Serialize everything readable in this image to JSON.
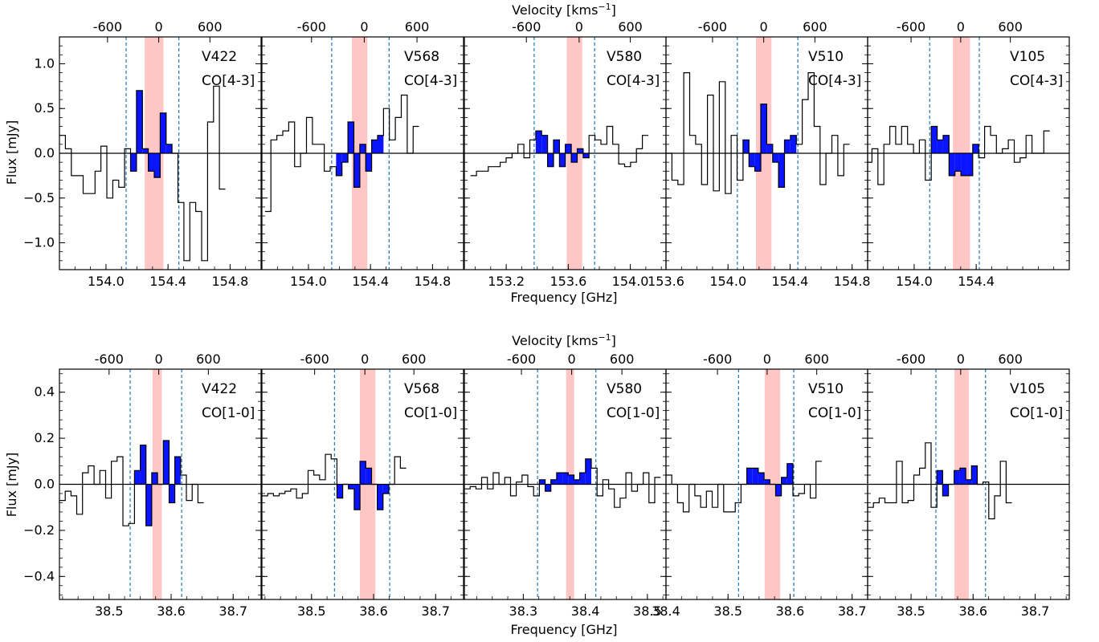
{
  "figure": {
    "velocity_label": "Velocity [kms",
    "velocity_unit_exp": "−1",
    "velocity_label_close": "]",
    "frequency_label": "Frequency [GHz]",
    "flux_label": "Flux [mJy]"
  },
  "colors": {
    "signal_fill": "#0a14ff",
    "highlight_band": "#ffc6c6",
    "dashed_line": "#1f77b4",
    "axis": "#000000"
  },
  "chart_data": [
    {
      "type": "step",
      "row": "top",
      "source": "V422",
      "line": "CO[4-3]",
      "xlim": [
        153.7,
        155.0
      ],
      "ylim": [
        -1.3,
        1.3
      ],
      "xticks": [
        154.0,
        154.4,
        154.8
      ],
      "xtick_labels": [
        "154.0",
        "154.4",
        "154.8"
      ],
      "yticks": [
        -1.0,
        -0.5,
        0.0,
        0.5,
        1.0
      ],
      "ytick_labels": [
        "−1.0",
        "−0.5",
        "0.0",
        "0.5",
        "1.0"
      ],
      "velocity_ticks": [
        "-600",
        "0",
        "600"
      ],
      "velocity_tick_freqs": [
        154.01,
        154.34,
        154.67
      ],
      "highlight": [
        154.25,
        154.37
      ],
      "dashed": [
        154.13,
        154.47
      ],
      "bin_start": 153.7,
      "bin_width": 0.0382,
      "values": [
        0.2,
        0.05,
        -0.25,
        -0.25,
        -0.45,
        -0.45,
        -0.2,
        0.08,
        -0.5,
        -0.3,
        -0.38,
        0.05,
        -0.2,
        0.7,
        0.05,
        -0.2,
        -0.27,
        0.45,
        0.1,
        0.0,
        -0.55,
        -1.2,
        -0.55,
        -0.65,
        -1.2,
        0.35,
        0.75,
        -0.4
      ]
    },
    {
      "type": "step",
      "row": "top",
      "source": "V568",
      "line": "CO[4-3]",
      "xlim": [
        153.7,
        155.0
      ],
      "ylim": [
        -1.3,
        1.3
      ],
      "xticks": [
        154.0,
        154.4,
        154.8
      ],
      "xtick_labels": [
        "154.0",
        "154.4",
        "154.8"
      ],
      "yticks": [
        -1.0,
        -0.5,
        0.0,
        0.5,
        1.0
      ],
      "ytick_labels": [],
      "velocity_ticks": [
        "-600",
        "0",
        "600"
      ],
      "velocity_tick_freqs": [
        154.02,
        154.36,
        154.7
      ],
      "highlight": [
        154.28,
        154.38
      ],
      "dashed": [
        154.15,
        154.52
      ],
      "bin_start": 153.72,
      "bin_width": 0.0382,
      "values": [
        -0.65,
        0.15,
        0.2,
        0.25,
        0.35,
        -0.15,
        0.0,
        0.4,
        0.1,
        0.1,
        -0.2,
        -0.15,
        -0.25,
        -0.1,
        0.35,
        -0.38,
        0.1,
        -0.2,
        0.15,
        0.2,
        0.5,
        0.15,
        0.4,
        0.65,
        0.0,
        0.3
      ]
    },
    {
      "type": "step",
      "row": "top",
      "source": "V580",
      "line": "CO[4-3]",
      "xlim": [
        152.93,
        154.23
      ],
      "ylim": [
        -1.3,
        1.3
      ],
      "xticks": [
        153.2,
        153.6,
        154.0
      ],
      "xtick_labels": [
        "153.2",
        "153.6",
        "154.0"
      ],
      "yticks": [
        -1.0,
        -0.5,
        0.0,
        0.5,
        1.0
      ],
      "ytick_labels": [],
      "velocity_ticks": [
        "-600",
        "0",
        "600"
      ],
      "velocity_tick_freqs": [
        153.33,
        153.67,
        154.0
      ],
      "highlight": [
        153.59,
        153.69
      ],
      "dashed": [
        153.38,
        153.77
      ],
      "bin_start": 152.97,
      "bin_width": 0.0382,
      "values": [
        -0.25,
        -0.2,
        -0.2,
        -0.15,
        -0.15,
        -0.1,
        -0.05,
        0.0,
        0.1,
        -0.05,
        0.15,
        0.25,
        0.2,
        -0.15,
        0.15,
        -0.15,
        0.1,
        -0.1,
        0.05,
        -0.05,
        0.2,
        0.15,
        0.1,
        0.3,
        0.1,
        -0.12,
        -0.15,
        -0.1,
        0.05,
        0.2
      ]
    },
    {
      "type": "step",
      "row": "top",
      "source": "V510",
      "line": "CO[4-3]",
      "xlim": [
        153.6,
        154.9
      ],
      "ylim": [
        -1.3,
        1.3
      ],
      "xticks": [
        153.6,
        154.0,
        154.4,
        154.8
      ],
      "xtick_labels": [
        "153.6",
        "154.0",
        "154.4",
        "154.8"
      ],
      "yticks": [
        -1.0,
        -0.5,
        0.0,
        0.5,
        1.0
      ],
      "ytick_labels": [],
      "velocity_ticks": [
        "-600",
        "0",
        "600"
      ],
      "velocity_tick_freqs": [
        153.9,
        154.23,
        154.56
      ],
      "highlight": [
        154.18,
        154.28
      ],
      "dashed": [
        154.06,
        154.45
      ],
      "bin_start": 153.6,
      "bin_width": 0.0382,
      "values": [
        0.0,
        -0.3,
        -0.35,
        0.9,
        0.2,
        0.1,
        -0.35,
        0.65,
        -0.42,
        0.8,
        -0.45,
        0.2,
        -0.3,
        0.15,
        -0.15,
        -0.2,
        0.55,
        0.1,
        -0.1,
        -0.38,
        0.15,
        0.2,
        0.1,
        0.6,
        0.9,
        0.3,
        -0.35,
        0.0,
        0.2,
        -0.25,
        0.1
      ]
    },
    {
      "type": "step",
      "row": "top",
      "source": "V105",
      "line": "CO[4-3]",
      "xlim": [
        153.7,
        155.0
      ],
      "ylim": [
        -1.3,
        1.3
      ],
      "xticks": [
        154.0,
        154.4
      ],
      "xtick_labels": [
        "154.0",
        "154.4"
      ],
      "yticks": [
        -1.0,
        -0.5,
        0.0,
        0.5,
        1.0
      ],
      "ytick_labels": [],
      "velocity_ticks": [
        "-600",
        "0",
        "600"
      ],
      "velocity_tick_freqs": [
        153.98,
        154.3,
        154.62
      ],
      "highlight": [
        154.25,
        154.36
      ],
      "dashed": [
        154.1,
        154.42
      ],
      "bin_start": 153.69,
      "bin_width": 0.0382,
      "values": [
        -0.1,
        0.05,
        -0.35,
        0.1,
        0.3,
        0.1,
        0.3,
        0.1,
        0.0,
        0.15,
        -0.3,
        0.3,
        0.15,
        0.2,
        -0.25,
        -0.2,
        -0.25,
        -0.25,
        0.1,
        -0.05,
        0.3,
        0.2,
        0.0,
        0.05,
        0.15,
        -0.1,
        -0.05,
        0.2,
        0.0,
        0.0,
        0.25
      ]
    },
    {
      "type": "step",
      "row": "bottom",
      "source": "V422",
      "line": "CO[1-0]",
      "xlim": [
        38.42,
        38.745
      ],
      "ylim": [
        -0.5,
        0.5
      ],
      "xticks": [
        38.5,
        38.6,
        38.7
      ],
      "xtick_labels": [
        "38.5",
        "38.6",
        "38.7"
      ],
      "yticks": [
        -0.4,
        -0.2,
        0.0,
        0.2,
        0.4
      ],
      "ytick_labels": [
        "−0.4",
        "−0.2",
        "0.0",
        "0.2",
        "0.4"
      ],
      "velocity_ticks": [
        "-600",
        "0",
        "600"
      ],
      "velocity_tick_freqs": [
        38.5,
        38.58,
        38.66
      ],
      "highlight": [
        38.57,
        38.585
      ],
      "dashed": [
        38.534,
        38.617
      ],
      "bin_start": 38.42,
      "bin_width": 0.0093,
      "values": [
        -0.07,
        -0.03,
        -0.05,
        -0.13,
        0.05,
        0.08,
        0.0,
        0.06,
        -0.06,
        0.1,
        0.12,
        -0.18,
        -0.17,
        0.06,
        0.17,
        -0.18,
        0.05,
        0.0,
        0.19,
        -0.08,
        0.12,
        0.04,
        -0.07,
        0.0,
        -0.08
      ]
    },
    {
      "type": "step",
      "row": "bottom",
      "source": "V568",
      "line": "CO[1-0]",
      "xlim": [
        38.42,
        38.745
      ],
      "ylim": [
        -0.5,
        0.5
      ],
      "xticks": [
        38.5,
        38.6,
        38.7
      ],
      "xtick_labels": [
        "38.5",
        "38.6",
        "38.7"
      ],
      "yticks": [
        -0.4,
        -0.2,
        0.0,
        0.2,
        0.4
      ],
      "ytick_labels": [],
      "velocity_ticks": [
        "-600",
        "0",
        "600"
      ],
      "velocity_tick_freqs": [
        38.505,
        38.586,
        38.665
      ],
      "highlight": [
        38.578,
        38.603
      ],
      "dashed": [
        38.537,
        38.626
      ],
      "bin_start": 38.42,
      "bin_width": 0.0093,
      "values": [
        -0.05,
        -0.04,
        -0.05,
        -0.04,
        -0.03,
        -0.02,
        -0.06,
        -0.04,
        0.06,
        0.04,
        0.02,
        0.13,
        0.11,
        -0.06,
        0.0,
        -0.02,
        -0.11,
        0.1,
        0.07,
        0.0,
        -0.11,
        -0.04,
        0.0,
        0.12,
        0.07
      ]
    },
    {
      "type": "step",
      "row": "bottom",
      "source": "V580",
      "line": "CO[1-0]",
      "xlim": [
        38.205,
        38.53
      ],
      "ylim": [
        -0.5,
        0.5
      ],
      "xticks": [
        38.3,
        38.4,
        38.5
      ],
      "xtick_labels": [
        "38.3",
        "38.4",
        "38.5"
      ],
      "yticks": [
        -0.4,
        -0.2,
        0.0,
        0.2,
        0.4
      ],
      "ytick_labels": [],
      "velocity_ticks": [
        "-600",
        "0",
        "600"
      ],
      "velocity_tick_freqs": [
        38.297,
        38.378,
        38.459
      ],
      "highlight": [
        38.369,
        38.382
      ],
      "dashed": [
        38.323,
        38.417
      ],
      "bin_start": 38.205,
      "bin_width": 0.0093,
      "values": [
        -0.02,
        -0.01,
        -0.02,
        0.03,
        -0.02,
        0.05,
        0.0,
        0.03,
        -0.05,
        0.01,
        0.04,
        -0.01,
        -0.05,
        0.02,
        -0.03,
        0.02,
        0.05,
        0.05,
        0.04,
        0.02,
        0.05,
        0.11,
        0.07,
        -0.05,
        0.02,
        -0.02,
        -0.1,
        -0.06,
        0.05,
        -0.03,
        0.0,
        0.05,
        -0.08,
        0.03
      ]
    },
    {
      "type": "step",
      "row": "bottom",
      "source": "V510",
      "line": "CO[1-0]",
      "xlim": [
        38.4,
        38.725
      ],
      "ylim": [
        -0.5,
        0.5
      ],
      "xticks": [
        38.4,
        38.5,
        38.6,
        38.7
      ],
      "xtick_labels": [
        "38.4",
        "38.5",
        "38.6",
        "38.7"
      ],
      "yticks": [
        -0.4,
        -0.2,
        0.0,
        0.2,
        0.4
      ],
      "ytick_labels": [],
      "velocity_ticks": [
        "-600",
        "0",
        "600"
      ],
      "velocity_tick_freqs": [
        38.483,
        38.563,
        38.643
      ],
      "highlight": [
        38.559,
        38.584
      ],
      "dashed": [
        38.517,
        38.606
      ],
      "bin_start": 38.4,
      "bin_width": 0.0093,
      "values": [
        0.04,
        0.0,
        -0.08,
        -0.12,
        0.0,
        -0.05,
        -0.1,
        -0.03,
        -0.1,
        0.0,
        -0.12,
        -0.12,
        -0.08,
        0.0,
        0.07,
        0.07,
        0.05,
        0.02,
        0.0,
        -0.05,
        0.03,
        0.09,
        -0.05,
        -0.04,
        0.0,
        -0.06,
        0.1
      ]
    },
    {
      "type": "step",
      "row": "bottom",
      "source": "V105",
      "line": "CO[1-0]",
      "xlim": [
        38.43,
        38.755
      ],
      "ylim": [
        -0.5,
        0.5
      ],
      "xticks": [
        38.5,
        38.6,
        38.7
      ],
      "xtick_labels": [
        "38.5",
        "38.6",
        "38.7"
      ],
      "yticks": [
        -0.4,
        -0.2,
        0.0,
        0.2,
        0.4
      ],
      "ytick_labels": [],
      "velocity_ticks": [
        "-600",
        "0",
        "600"
      ],
      "velocity_tick_freqs": [
        38.5,
        38.58,
        38.66
      ],
      "highlight": [
        38.57,
        38.593
      ],
      "dashed": [
        38.54,
        38.62
      ],
      "bin_start": 38.43,
      "bin_width": 0.0093,
      "values": [
        -0.1,
        -0.08,
        -0.06,
        -0.08,
        -0.08,
        0.1,
        -0.08,
        -0.07,
        0.04,
        0.07,
        0.18,
        -0.1,
        0.06,
        -0.05,
        0.0,
        0.06,
        0.07,
        0.02,
        0.08,
        0.0,
        0.01,
        -0.15,
        -0.05,
        0.1,
        -0.08
      ]
    }
  ]
}
